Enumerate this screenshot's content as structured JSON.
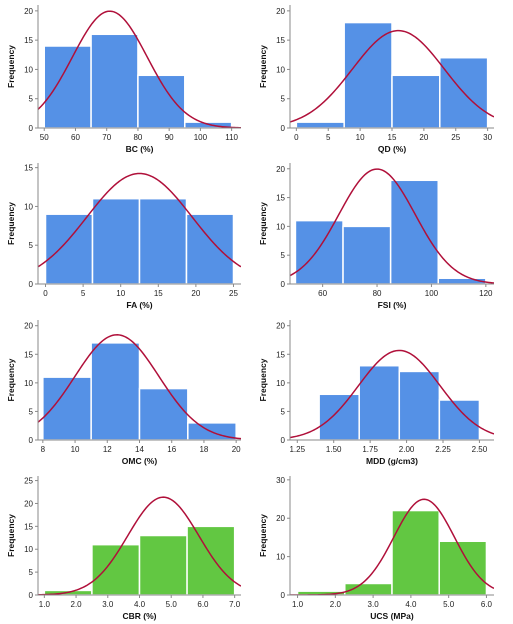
{
  "colors": {
    "blue": "#5591e6",
    "green": "#62c742",
    "curve": "#b0103a"
  },
  "chart_data": [
    {
      "id": "bc",
      "type": "bar",
      "color": "blue",
      "bins": [
        [
          50,
          65,
          14
        ],
        [
          65,
          80,
          16
        ],
        [
          80,
          95,
          9
        ],
        [
          95,
          110,
          1
        ]
      ],
      "xlim": [
        48,
        113
      ],
      "ylim": [
        0,
        21
      ],
      "xticks": [
        50,
        60,
        70,
        80,
        90,
        100,
        110
      ],
      "yticks": [
        0,
        5,
        10,
        15,
        20
      ],
      "xlabel": "BC (%)",
      "ylabel": "Frequency",
      "normal": {
        "mean": 71,
        "sd": 12,
        "n": 40
      }
    },
    {
      "id": "qd",
      "type": "bar",
      "color": "blue",
      "bins": [
        [
          0,
          7.5,
          1
        ],
        [
          7.5,
          15,
          18
        ],
        [
          15,
          22.5,
          9
        ],
        [
          22.5,
          30,
          12
        ]
      ],
      "xlim": [
        -1,
        31
      ],
      "ylim": [
        0,
        21
      ],
      "xticks": [
        0,
        5,
        10,
        15,
        20,
        25,
        30
      ],
      "yticks": [
        0,
        5,
        10,
        15,
        20
      ],
      "xlabel": "QD (%)",
      "ylabel": "Frequency",
      "normal": {
        "mean": 16,
        "sd": 7.2,
        "n": 40
      }
    },
    {
      "id": "fa",
      "type": "bar",
      "color": "blue",
      "bins": [
        [
          0,
          6.25,
          9
        ],
        [
          6.25,
          12.5,
          11
        ],
        [
          12.5,
          18.75,
          11
        ],
        [
          18.75,
          25,
          9
        ]
      ],
      "xlim": [
        -1,
        26
      ],
      "ylim": [
        0,
        15.6
      ],
      "xticks": [
        0,
        5,
        10,
        15,
        20,
        25
      ],
      "yticks": [
        0,
        5,
        10,
        15
      ],
      "xlabel": "FA (%)",
      "ylabel": "Frequency",
      "normal": {
        "mean": 12.5,
        "sd": 7,
        "n": 40
      }
    },
    {
      "id": "fsi",
      "type": "bar",
      "color": "blue",
      "bins": [
        [
          50,
          67.5,
          11
        ],
        [
          67.5,
          85,
          10
        ],
        [
          85,
          102.5,
          18
        ],
        [
          102.5,
          120,
          1
        ]
      ],
      "xlim": [
        48,
        123
      ],
      "ylim": [
        0,
        21
      ],
      "xticks": [
        60,
        80,
        100,
        120
      ],
      "yticks": [
        0,
        5,
        10,
        15,
        20
      ],
      "xlabel": "FSI (%)",
      "ylabel": "Frequency",
      "normal": {
        "mean": 80,
        "sd": 14,
        "n": 40
      }
    },
    {
      "id": "omc",
      "type": "bar",
      "color": "blue",
      "bins": [
        [
          8,
          11,
          11
        ],
        [
          11,
          14,
          17
        ],
        [
          14,
          17,
          9
        ],
        [
          17,
          20,
          3
        ]
      ],
      "xlim": [
        7.7,
        20.3
      ],
      "ylim": [
        0,
        21
      ],
      "xticks": [
        8,
        10,
        12,
        14,
        16,
        18,
        20
      ],
      "yticks": [
        0,
        5,
        10,
        15,
        20
      ],
      "xlabel": "OMC (%)",
      "ylabel": "Frequency",
      "normal": {
        "mean": 12.6,
        "sd": 2.6,
        "n": 40
      }
    },
    {
      "id": "mdd",
      "type": "bar",
      "color": "blue",
      "bins": [
        [
          1.4,
          1.675,
          8
        ],
        [
          1.675,
          1.95,
          13
        ],
        [
          1.95,
          2.225,
          12
        ],
        [
          2.225,
          2.5,
          7
        ]
      ],
      "xlim": [
        1.2,
        2.6
      ],
      "ylim": [
        0,
        21
      ],
      "xticks": [
        "1.25",
        "1.50",
        "1.75",
        "2.00",
        "2.25",
        "2.50"
      ],
      "yticks": [
        0,
        5,
        10,
        15,
        20
      ],
      "xlabel": "MDD (g/cm3)",
      "ylabel": "Frequency",
      "normal": {
        "mean": 1.95,
        "sd": 0.28,
        "n": 40
      }
    },
    {
      "id": "cbr",
      "type": "bar",
      "color": "green",
      "bins": [
        [
          1.0,
          2.5,
          1
        ],
        [
          2.5,
          4.0,
          11
        ],
        [
          4.0,
          5.5,
          13
        ],
        [
          5.5,
          7.0,
          15
        ]
      ],
      "xlim": [
        0.8,
        7.2
      ],
      "ylim": [
        0,
        26
      ],
      "xticks": [
        "1.0",
        "2.0",
        "3.0",
        "4.0",
        "5.0",
        "6.0",
        "7.0"
      ],
      "yticks": [
        0,
        5,
        10,
        15,
        20,
        25
      ],
      "xlabel": "CBR (%)",
      "ylabel": "Frequency",
      "normal": {
        "mean": 4.75,
        "sd": 1.12,
        "n": 40
      }
    },
    {
      "id": "ucs",
      "type": "bar",
      "color": "green",
      "bins": [
        [
          1.0,
          2.25,
          1
        ],
        [
          2.25,
          3.5,
          3
        ],
        [
          3.5,
          4.75,
          22
        ],
        [
          4.75,
          6.0,
          14
        ]
      ],
      "xlim": [
        0.8,
        6.2
      ],
      "ylim": [
        0,
        31
      ],
      "xticks": [
        "1.0",
        "2.0",
        "3.0",
        "4.0",
        "5.0",
        "6.0"
      ],
      "yticks": [
        0,
        10,
        20,
        30
      ],
      "xlabel": "UCS (MPa)",
      "ylabel": "Frequency",
      "normal": {
        "mean": 4.35,
        "sd": 0.8,
        "n": 40
      }
    }
  ]
}
